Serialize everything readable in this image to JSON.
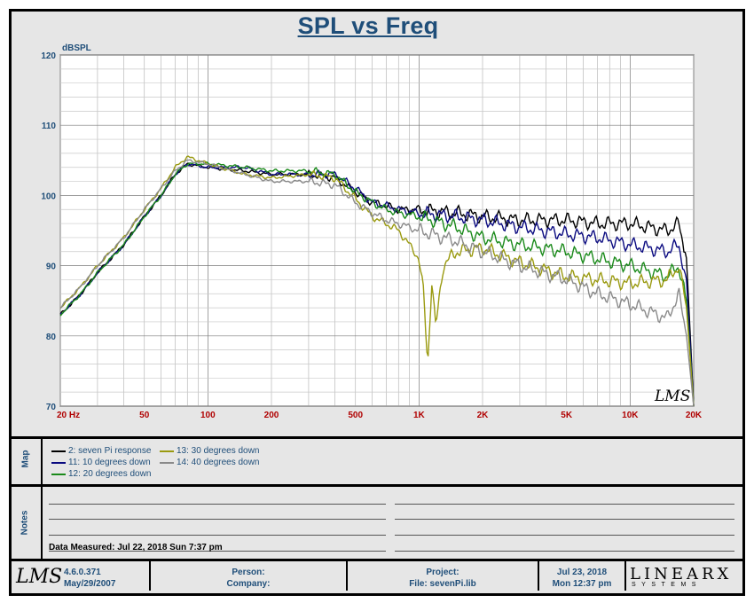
{
  "chart_data": {
    "type": "line",
    "title": "SPL vs Freq",
    "ylabel": "dBSPL",
    "xscale": "log",
    "xlim": [
      20,
      20000
    ],
    "ylim": [
      70,
      120
    ],
    "grid": true,
    "y_ticks": [
      {
        "value": 70,
        "label": "70"
      },
      {
        "value": 80,
        "label": "80"
      },
      {
        "value": 90,
        "label": "90"
      },
      {
        "value": 100,
        "label": "100"
      },
      {
        "value": 110,
        "label": "110"
      },
      {
        "value": 120,
        "label": "120"
      }
    ],
    "x_ticks": [
      {
        "value": 20,
        "label": "20  Hz"
      },
      {
        "value": 50,
        "label": "50"
      },
      {
        "value": 100,
        "label": "100"
      },
      {
        "value": 200,
        "label": "200"
      },
      {
        "value": 500,
        "label": "500"
      },
      {
        "value": 1000,
        "label": "1K"
      },
      {
        "value": 2000,
        "label": "2K"
      },
      {
        "value": 5000,
        "label": "5K"
      },
      {
        "value": 10000,
        "label": "10K"
      },
      {
        "value": 20000,
        "label": "20K"
      }
    ],
    "watermark": "LMS",
    "series": [
      {
        "name": "2: seven Pi response",
        "color": "#000000",
        "x": [
          20,
          25,
          30,
          40,
          50,
          60,
          70,
          80,
          100,
          150,
          200,
          300,
          400,
          500,
          600,
          700,
          800,
          1000,
          1500,
          2000,
          3000,
          5000,
          7000,
          10000,
          15000,
          17000,
          18500,
          20000
        ],
        "y": [
          83,
          86,
          89,
          93,
          97,
          100,
          103,
          104.5,
          104,
          103.5,
          103,
          103,
          102.5,
          100.5,
          99,
          98.5,
          98,
          98,
          97.5,
          97,
          96.5,
          96.5,
          96,
          96,
          95,
          96,
          91,
          70
        ]
      },
      {
        "name": "11: 10 degrees down",
        "color": "#0a0a80",
        "x": [
          20,
          25,
          30,
          40,
          50,
          60,
          70,
          80,
          100,
          150,
          200,
          300,
          400,
          500,
          600,
          700,
          800,
          1000,
          1500,
          2000,
          3000,
          5000,
          7000,
          10000,
          15000,
          17000,
          18500,
          20000
        ],
        "y": [
          83,
          86,
          89,
          93,
          97,
          100,
          103,
          104.5,
          104,
          104,
          103,
          103,
          103,
          101,
          99,
          98.5,
          98,
          97.5,
          97,
          96.5,
          95.5,
          94.5,
          94,
          93,
          92,
          93,
          88,
          70
        ]
      },
      {
        "name": "12: 20 degrees down",
        "color": "#1a8a1a",
        "x": [
          20,
          25,
          30,
          40,
          50,
          60,
          70,
          80,
          100,
          150,
          200,
          300,
          400,
          500,
          600,
          700,
          800,
          1000,
          1500,
          2000,
          3000,
          5000,
          7000,
          10000,
          15000,
          17000,
          18500,
          20000
        ],
        "y": [
          83,
          86,
          89,
          93,
          97,
          100,
          103,
          104.5,
          104.5,
          104,
          103.5,
          103.5,
          103,
          100.5,
          99,
          98,
          97.5,
          97,
          95.5,
          94,
          93,
          92,
          91,
          90,
          88.5,
          90,
          85,
          70
        ]
      },
      {
        "name": "13: 30 degrees down",
        "color": "#9a9a10",
        "x": [
          20,
          25,
          30,
          40,
          50,
          60,
          70,
          80,
          100,
          150,
          200,
          300,
          400,
          500,
          600,
          700,
          800,
          900,
          1000,
          1050,
          1100,
          1150,
          1200,
          1300,
          1500,
          2000,
          3000,
          5000,
          7000,
          10000,
          15000,
          17000,
          18500,
          20000
        ],
        "y": [
          84,
          87,
          90,
          94,
          98,
          101,
          104,
          105.5,
          104.5,
          103,
          102.5,
          103,
          102.5,
          99.5,
          97,
          96,
          95,
          93,
          91,
          86,
          76,
          88,
          81,
          90,
          92,
          92.5,
          90.5,
          88.5,
          88,
          87.5,
          88,
          90,
          84,
          70
        ]
      },
      {
        "name": "14: 40 degrees down",
        "color": "#8a8a8a",
        "x": [
          20,
          25,
          30,
          40,
          50,
          60,
          70,
          80,
          100,
          150,
          200,
          300,
          400,
          500,
          600,
          700,
          800,
          1000,
          1500,
          2000,
          3000,
          5000,
          7000,
          10000,
          15000,
          17000,
          18500,
          20000
        ],
        "y": [
          84,
          87,
          90,
          94,
          98,
          101,
          103.5,
          105,
          104.5,
          103,
          102,
          102,
          101.5,
          99,
          97.5,
          96.5,
          96,
          95,
          93.5,
          92,
          90,
          88,
          86,
          84.5,
          82.5,
          86,
          80,
          70
        ]
      }
    ]
  },
  "panels": {
    "map_label": "Map",
    "notes_label": "Notes"
  },
  "notes": {
    "data_measured": "Data Measured: Jul 22, 2018  Sun  7:37 pm"
  },
  "footer": {
    "logo": "LMS",
    "version": "4.6.0.371",
    "version_date": "May/29/2007",
    "person_label": "Person:",
    "company_label": "Company:",
    "project_label": "Project:",
    "file_label": "File: sevenPi.lib",
    "date": "Jul 23, 2018",
    "time": "Mon 12:37 pm",
    "brand": "LINEARX",
    "brand_sub": "SYSTEMS"
  }
}
